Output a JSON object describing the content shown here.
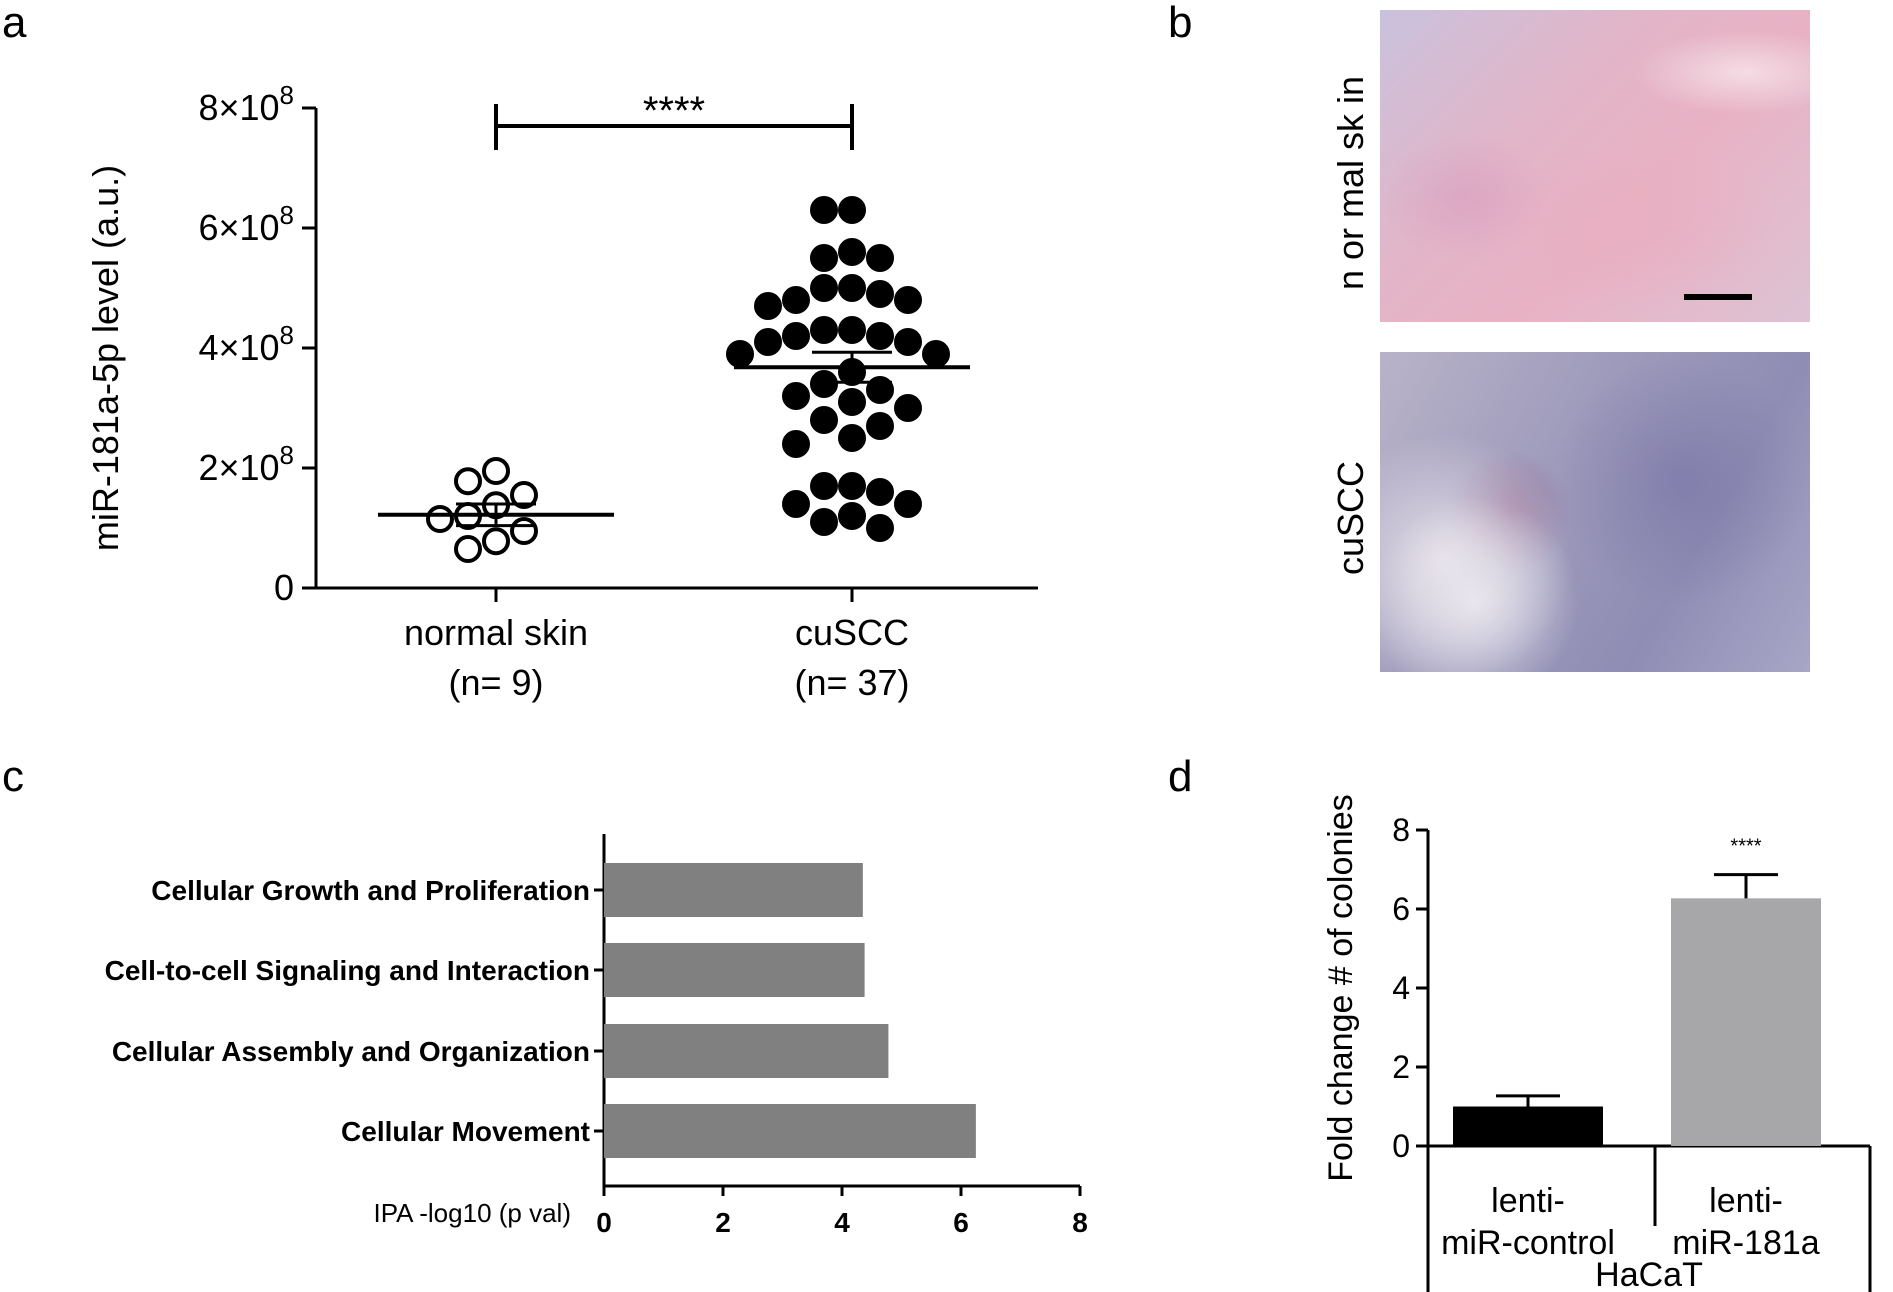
{
  "panels": {
    "a": "a",
    "b": "b",
    "c": "c",
    "d": "d"
  },
  "panel_b": {
    "label_top": "n or mal  sk in",
    "label_bottom": "cuSCC"
  },
  "chart_data": [
    {
      "panel": "a",
      "type": "scatter",
      "ylabel": "miR-181a-5p level (a.u.)",
      "ylim": [
        0,
        800000000
      ],
      "yticks": [
        {
          "value": 0,
          "mantissa": "0",
          "base": "",
          "exp": ""
        },
        {
          "value": 200000000,
          "mantissa": "2×",
          "base": "10",
          "exp": "8"
        },
        {
          "value": 400000000,
          "mantissa": "4×",
          "base": "10",
          "exp": "8"
        },
        {
          "value": 600000000,
          "mantissa": "6×",
          "base": "10",
          "exp": "8"
        },
        {
          "value": 800000000,
          "mantissa": "8×",
          "base": "10",
          "exp": "8"
        }
      ],
      "groups": [
        {
          "name": "normal skin",
          "n_label": "(n= 9)",
          "filled": false,
          "mean": 122000000,
          "sem": 18000000,
          "values": [
            195000000,
            178000000,
            155000000,
            138000000,
            120000000,
            115000000,
            95000000,
            78000000,
            65000000
          ]
        },
        {
          "name": "cuSCC",
          "n_label": "(n= 37)",
          "filled": true,
          "mean": 368000000,
          "sem": 25000000,
          "values": [
            630000000,
            630000000,
            560000000,
            550000000,
            550000000,
            500000000,
            500000000,
            490000000,
            480000000,
            480000000,
            470000000,
            430000000,
            430000000,
            420000000,
            420000000,
            410000000,
            410000000,
            390000000,
            390000000,
            360000000,
            340000000,
            330000000,
            320000000,
            310000000,
            300000000,
            280000000,
            270000000,
            250000000,
            240000000,
            170000000,
            170000000,
            160000000,
            140000000,
            140000000,
            120000000,
            110000000,
            100000000
          ]
        }
      ],
      "significance": "****"
    },
    {
      "panel": "c",
      "type": "bar",
      "orientation": "horizontal",
      "xlabel": "IPA -log10 (p val)",
      "xlim": [
        0,
        8
      ],
      "xticks": [
        "0",
        "2",
        "4",
        "6",
        "8"
      ],
      "categories": [
        "Cellular Growth and Proliferation",
        "Cell-to-cell Signaling and Interaction",
        "Cellular Assembly and Organization",
        "Cellular Movement"
      ],
      "values": [
        4.35,
        4.38,
        4.78,
        6.25
      ],
      "bar_color": "#808080"
    },
    {
      "panel": "d",
      "type": "bar",
      "ylabel": "Fold change # of colonies",
      "ylim": [
        0,
        8
      ],
      "yticks": [
        "0",
        "2",
        "4",
        "6",
        "8"
      ],
      "categories": [
        {
          "line1": "lenti-",
          "line2": "miR-control"
        },
        {
          "line1": "lenti-",
          "line2": "miR-181a"
        }
      ],
      "group_label": "HaCaT",
      "values": [
        1.0,
        6.27
      ],
      "errors": [
        0.27,
        0.6
      ],
      "colors": [
        "#000000",
        "#a7a7a9"
      ],
      "significance": "****"
    }
  ]
}
